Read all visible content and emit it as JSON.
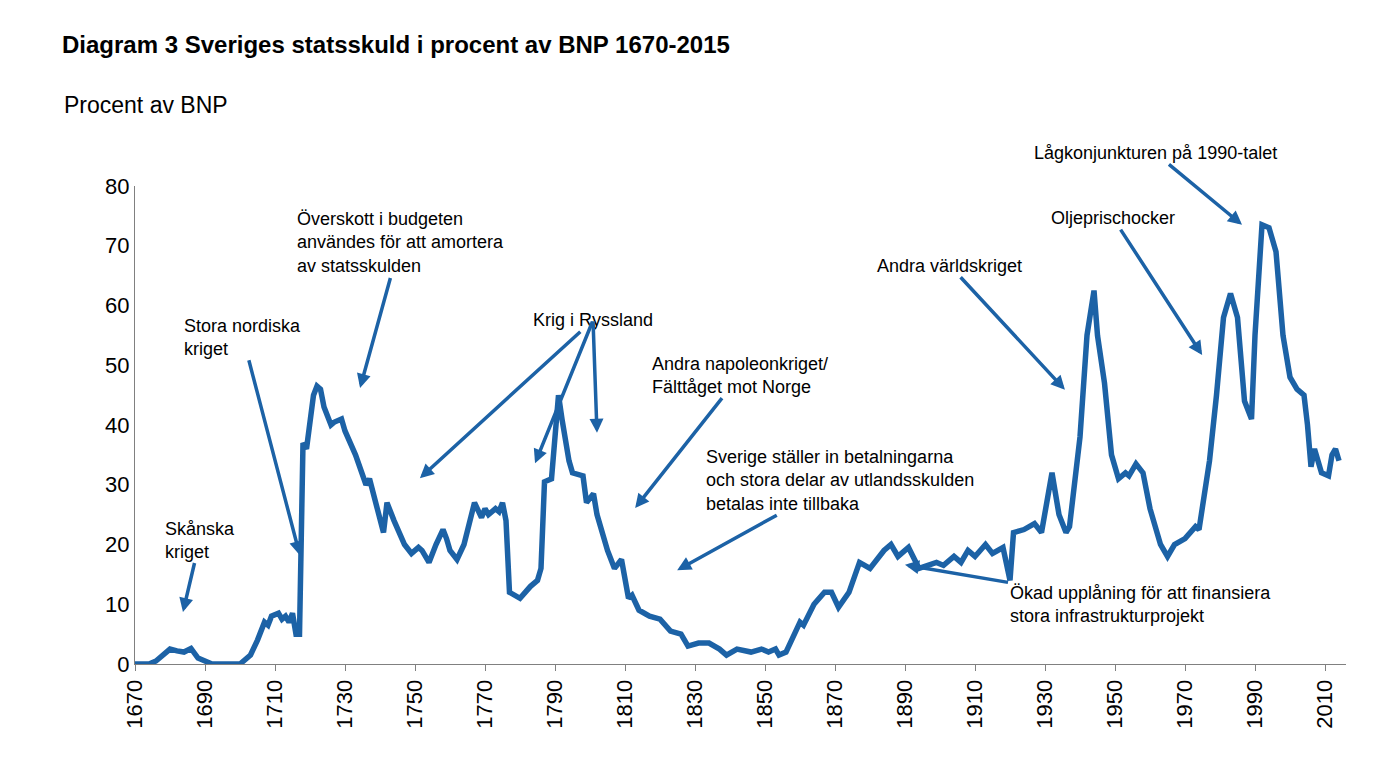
{
  "chart_data": {
    "type": "line",
    "title": "Diagram 3 Sveriges statsskuld i procent av BNP 1670-2015",
    "subtitle": "Procent av BNP",
    "color": "#1c62a6",
    "grid": false,
    "xlim": [
      1670,
      2016
    ],
    "ylim": [
      0,
      80
    ],
    "xticks": [
      1670,
      1690,
      1710,
      1730,
      1750,
      1770,
      1790,
      1810,
      1830,
      1850,
      1870,
      1890,
      1910,
      1930,
      1950,
      1970,
      1990,
      2010
    ],
    "yticks": [
      0,
      10,
      20,
      30,
      40,
      50,
      60,
      70,
      80
    ],
    "x": [
      1670,
      1674,
      1676,
      1678,
      1680,
      1682,
      1684,
      1686,
      1688,
      1690,
      1692,
      1700,
      1703,
      1705,
      1707,
      1708,
      1709,
      1711,
      1712,
      1713,
      1714,
      1715,
      1716,
      1717,
      1718,
      1719,
      1721,
      1722,
      1723,
      1724,
      1726,
      1727,
      1729,
      1730,
      1733,
      1736,
      1737,
      1741,
      1742,
      1744,
      1746,
      1747,
      1749,
      1751,
      1752,
      1754,
      1756,
      1758,
      1759,
      1760,
      1762,
      1764,
      1767,
      1769,
      1770,
      1771,
      1773,
      1774,
      1775,
      1776,
      1777,
      1780,
      1783,
      1785,
      1786,
      1787,
      1789,
      1791,
      1792,
      1794,
      1795,
      1798,
      1799,
      1801,
      1802,
      1805,
      1807,
      1809,
      1811,
      1812,
      1814,
      1817,
      1820,
      1823,
      1826,
      1828,
      1831,
      1834,
      1837,
      1839,
      1842,
      1846,
      1849,
      1851,
      1853,
      1854,
      1856,
      1859,
      1860,
      1861,
      1864,
      1867,
      1869,
      1871,
      1874,
      1877,
      1880,
      1884,
      1886,
      1888,
      1891,
      1894,
      1899,
      1901,
      1904,
      1906,
      1908,
      1910,
      1913,
      1915,
      1918,
      1920,
      1921,
      1924,
      1927,
      1929,
      1931,
      1932,
      1934,
      1936,
      1937,
      1940,
      1942,
      1944,
      1945,
      1947,
      1949,
      1951,
      1953,
      1954,
      1956,
      1958,
      1960,
      1963,
      1965,
      1967,
      1970,
      1973,
      1974,
      1977,
      1979,
      1981,
      1983,
      1985,
      1987,
      1989,
      1990,
      1992,
      1994,
      1996,
      1998,
      2000,
      2002,
      2004,
      2005,
      2006,
      2007,
      2009,
      2011,
      2012,
      2013,
      2014
    ],
    "values": [
      0,
      0,
      0.5,
      1.5,
      2.5,
      2.2,
      2,
      2.6,
      1,
      0.5,
      0,
      0,
      1.5,
      4,
      7,
      6.5,
      8,
      8.5,
      7.5,
      8,
      7,
      8.5,
      5,
      5,
      37,
      36,
      45,
      46.5,
      46,
      43,
      40,
      40.5,
      41,
      39,
      35,
      30,
      31,
      22,
      27,
      24,
      21,
      20,
      18.5,
      19.5,
      19,
      17,
      20,
      22.5,
      21,
      19,
      17.5,
      20,
      27,
      24.5,
      26,
      25,
      26,
      25.5,
      27,
      24,
      12,
      11,
      13,
      14,
      16,
      30.5,
      31,
      45,
      41,
      34,
      32,
      31.5,
      27,
      28.5,
      25,
      19,
      16,
      17.5,
      11,
      11.5,
      9,
      8,
      7.5,
      5.5,
      5,
      3,
      3.5,
      3.5,
      2.5,
      1.5,
      2.5,
      2,
      2.5,
      2,
      2.5,
      1.5,
      2,
      6,
      7,
      6.5,
      10,
      12,
      12,
      9.5,
      12,
      17,
      16,
      19,
      20,
      18,
      19.5,
      16,
      17,
      16.5,
      18,
      17,
      19,
      18,
      20,
      18.5,
      19.5,
      14,
      22,
      22.5,
      23.5,
      22,
      28,
      32,
      25,
      22,
      23,
      38,
      55,
      62.5,
      55,
      47,
      35,
      31,
      32,
      31.5,
      33.5,
      32,
      26,
      20,
      18,
      20,
      21,
      23,
      22.5,
      34,
      45,
      58,
      62,
      58,
      44,
      41,
      55,
      73.5,
      73,
      69,
      55,
      48,
      46,
      45,
      40,
      33,
      36,
      32,
      31.5,
      35,
      36,
      34
    ],
    "annotations": [
      {
        "lines": [
          "Skånska",
          "kriget"
        ],
        "targets": [
          {
            "x": 1683.7,
            "y": 8.7
          }
        ]
      },
      {
        "lines": [
          "Stora nordiska",
          "kriget"
        ],
        "targets": [
          {
            "x": 1717.1,
            "y": 18.2
          }
        ]
      },
      {
        "lines": [
          "Överskott i budgeten",
          "användes för att amortera",
          "av statsskulden"
        ],
        "targets": [
          {
            "x": 1734.3,
            "y": 46.2
          }
        ]
      },
      {
        "lines": [
          "Krig i Ryssland"
        ],
        "targets": [
          {
            "x": 1751.4,
            "y": 31.1
          },
          {
            "x": 1784.3,
            "y": 33.6
          },
          {
            "x": 1802,
            "y": 38.7
          }
        ]
      },
      {
        "lines": [
          "Andra napoleonkriget/",
          "Fälttåget mot Norge"
        ],
        "targets": [
          {
            "x": 1812.9,
            "y": 26.1
          }
        ]
      },
      {
        "lines": [
          "Sverige ställer in betalningarna",
          "och stora delar av utlandsskulden",
          "betalas inte tillbaka"
        ],
        "targets": [
          {
            "x": 1824.9,
            "y": 15.7
          }
        ]
      },
      {
        "lines": [
          "Ökad upplåning för att finansiera",
          "stora infrastrukturprojekt"
        ],
        "targets": [
          {
            "x": 1890,
            "y": 16.6
          }
        ]
      },
      {
        "lines": [
          "Andra världskriget"
        ],
        "targets": [
          {
            "x": 1935.7,
            "y": 45.9
          }
        ]
      },
      {
        "lines": [
          "Oljeprischocker"
        ],
        "targets": [
          {
            "x": 1974.9,
            "y": 51.7
          }
        ]
      },
      {
        "lines": [
          "Lågkonjunkturen på 1990-talet"
        ],
        "targets": [
          {
            "x": 1986.3,
            "y": 73.5
          }
        ]
      }
    ]
  }
}
